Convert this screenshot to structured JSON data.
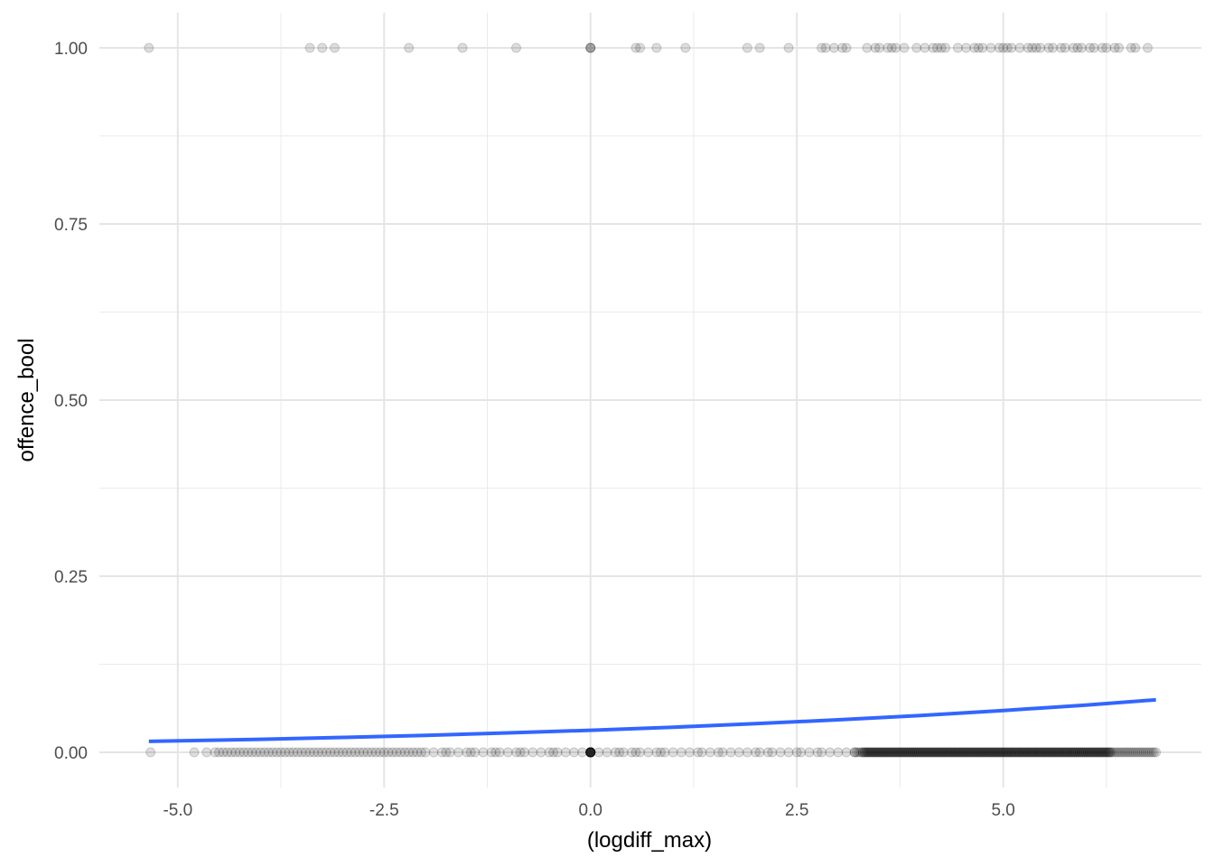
{
  "chart_data": {
    "type": "scatter",
    "title": "",
    "xlabel": "(logdiff_max)",
    "ylabel": "offence_bool",
    "xlim": [
      -5.95,
      7.4
    ],
    "ylim": [
      -0.05,
      1.05
    ],
    "grid": true,
    "x_ticks": [
      -5.0,
      -2.5,
      0.0,
      2.5,
      5.0
    ],
    "x_tick_labels": [
      "-5.0",
      "-2.5",
      "0.0",
      "2.5",
      "5.0"
    ],
    "y_ticks": [
      0.0,
      0.25,
      0.5,
      0.75,
      1.0
    ],
    "y_tick_labels": [
      "0.00",
      "0.25",
      "0.50",
      "0.75",
      "1.00"
    ],
    "point_color": "#000000",
    "point_alpha": 0.13,
    "line_color": "#3366ff",
    "points_y1": [
      -5.35,
      -3.4,
      -3.25,
      -3.1,
      -2.2,
      -1.55,
      -0.9,
      0.0,
      0.0,
      0.0,
      0.55,
      0.6,
      0.8,
      1.15,
      1.9,
      2.05,
      2.4,
      2.8,
      2.85,
      2.95,
      3.05,
      3.1,
      3.35,
      3.45,
      3.5,
      3.6,
      3.65,
      3.7,
      3.8,
      3.95,
      4.05,
      4.15,
      4.2,
      4.25,
      4.3,
      4.45,
      4.55,
      4.65,
      4.7,
      4.75,
      4.85,
      4.95,
      5.0,
      5.05,
      5.1,
      5.2,
      5.3,
      5.35,
      5.4,
      5.45,
      5.55,
      5.6,
      5.7,
      5.75,
      5.85,
      5.9,
      5.95,
      6.05,
      6.1,
      6.2,
      6.25,
      6.35,
      6.4,
      6.55,
      6.6,
      6.75
    ],
    "points_y0_sparse": [
      -5.33,
      -4.8,
      -4.65,
      -4.55,
      -4.5,
      -4.45,
      -4.4,
      -4.35,
      -4.3,
      -4.25,
      -4.2,
      -4.15,
      -4.1,
      -4.05,
      -4.0,
      -3.95,
      -3.9,
      -3.85,
      -3.8,
      -3.75,
      -3.7,
      -3.65,
      -3.6,
      -3.55,
      -3.5,
      -3.45,
      -3.4,
      -3.35,
      -3.3,
      -3.25,
      -3.2,
      -3.15,
      -3.1,
      -3.05,
      -3.0,
      -2.95,
      -2.9,
      -2.85,
      -2.8,
      -2.75,
      -2.7,
      -2.65,
      -2.6,
      -2.55,
      -2.5,
      -2.45,
      -2.4,
      -2.35,
      -2.3,
      -2.25,
      -2.2,
      -2.15,
      -2.1,
      -2.05,
      -2.0,
      -1.9,
      -1.8,
      -1.75,
      -1.7,
      -1.6,
      -1.5,
      -1.45,
      -1.4,
      -1.3,
      -1.2,
      -1.15,
      -1.1,
      -1.0,
      -0.9,
      -0.85,
      -0.8,
      -0.7,
      -0.6,
      -0.5,
      -0.45,
      -0.4,
      -0.3,
      -0.2,
      -0.1,
      0.0,
      0.0,
      0.0,
      0.0,
      0.0,
      0.1,
      0.2,
      0.3,
      0.35,
      0.4,
      0.5,
      0.55,
      0.6,
      0.7,
      0.8,
      0.85,
      0.9,
      1.0,
      1.1,
      1.2,
      1.3,
      1.35,
      1.45,
      1.55,
      1.6,
      1.7,
      1.8,
      1.9,
      2.0,
      2.05,
      2.15,
      2.2,
      2.3,
      2.4,
      2.5,
      2.55,
      2.65,
      2.75,
      2.8,
      2.9,
      3.0,
      3.1,
      3.2
    ],
    "points_y0_dense_range": [
      3.2,
      6.85
    ],
    "fit_curve": {
      "x": [
        -5.35,
        -4.0,
        -3.0,
        -2.0,
        -1.0,
        0.0,
        1.0,
        2.0,
        3.0,
        4.0,
        5.0,
        6.0,
        6.85
      ],
      "y": [
        0.0155,
        0.0185,
        0.0211,
        0.0241,
        0.0275,
        0.0313,
        0.0357,
        0.0406,
        0.0461,
        0.0523,
        0.0593,
        0.0671,
        0.0745
      ]
    }
  }
}
